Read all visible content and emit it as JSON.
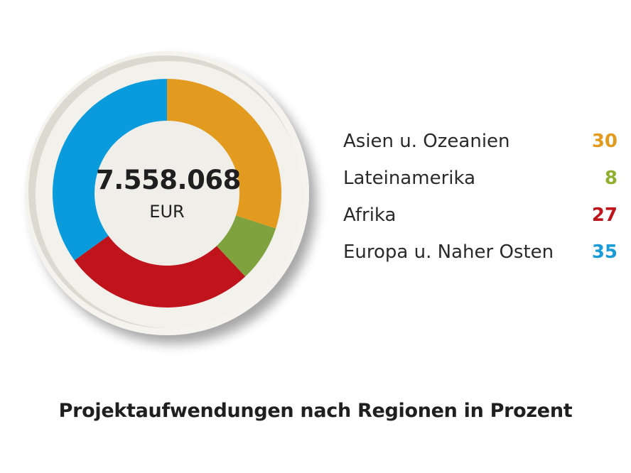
{
  "chart_data": {
    "type": "pie",
    "variant": "donut",
    "title": "Projektaufwendungen nach Regionen in Prozent",
    "center_label": {
      "value": "7.558.068",
      "unit": "EUR"
    },
    "categories": [
      "Asien u. Ozeanien",
      "Lateinamerika",
      "Afrika",
      "Europa u. Naher Osten"
    ],
    "values": [
      30,
      8,
      27,
      35
    ],
    "colors": [
      "#E39B1F",
      "#7FA23F",
      "#C0141C",
      "#0A9BDC"
    ],
    "legend_position": "right",
    "start_angle_deg": 0,
    "direction": "clockwise"
  },
  "center": {
    "value": "7.558.068",
    "unit": "EUR"
  },
  "legend": {
    "items": [
      {
        "label": "Asien u. Ozeanien",
        "value": "30",
        "color": "#E39B1F"
      },
      {
        "label": "Lateinamerika",
        "value": "8",
        "color": "#8FAF2F"
      },
      {
        "label": "Afrika",
        "value": "27",
        "color": "#C0141C"
      },
      {
        "label": "Europa u. Naher Osten",
        "value": "35",
        "color": "#1A9BD8"
      }
    ]
  },
  "caption": "Projektaufwendungen nach Regionen in Prozent"
}
